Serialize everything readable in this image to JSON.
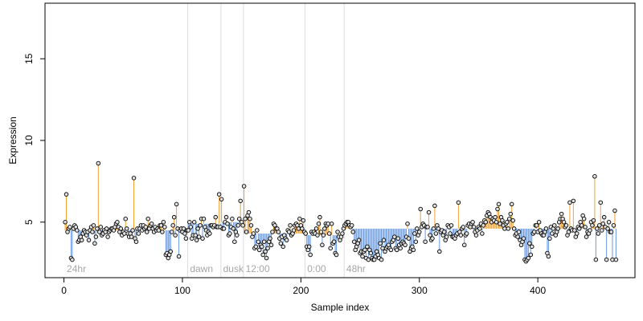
{
  "chart_data": {
    "type": "scatter",
    "title": "",
    "xlabel": "Sample index",
    "ylabel": "Expression",
    "xlim": [
      -16,
      482
    ],
    "ylim": [
      1.6,
      18.4
    ],
    "x_ticks": [
      0,
      100,
      200,
      300,
      400
    ],
    "y_ticks": [
      5,
      10,
      15
    ],
    "grid": false,
    "baseline_reference": "per-segment group mean",
    "colors": {
      "above_baseline": "#f0a030",
      "below_baseline": "#6a9ae0",
      "segment_divider": "#dddddd",
      "segment_label": "#a6a6a6",
      "point_fill": "#e0e0e0",
      "point_stroke": "#000000"
    },
    "segments": [
      {
        "label": "24hr",
        "start": 1,
        "end": 104,
        "baseline": 4.5
      },
      {
        "label": "dawn",
        "start": 105,
        "end": 132,
        "baseline": 4.9
      },
      {
        "label": "dusk",
        "start": 133,
        "end": 151,
        "baseline": 5.0
      },
      {
        "label": "12:00",
        "start": 152,
        "end": 203,
        "baseline": 4.3
      },
      {
        "label": "0:00",
        "start": 204,
        "end": 236,
        "baseline": 4.2
      },
      {
        "label": "48hr",
        "start": 237,
        "end": 466,
        "baseline": 4.6
      }
    ],
    "series": [
      {
        "values": [
          5.0,
          6.7,
          4.4,
          4.6,
          4.7,
          2.8,
          2.7,
          4.6,
          4.8,
          4.7,
          4.5,
          3.8,
          3.9,
          4.1,
          3.9,
          4.3,
          4.5,
          4.4,
          4.2,
          4.4,
          3.9,
          4.5,
          4.7,
          4.4,
          4.8,
          3.7,
          4.1,
          4.6,
          8.6,
          4.4,
          4.7,
          4.2,
          4.3,
          4.5,
          4.4,
          4.6,
          4.1,
          4.4,
          4.5,
          4.6,
          4.6,
          4.5,
          4.7,
          4.9,
          5.0,
          4.7,
          4.4,
          4.6,
          4.2,
          4.4,
          4.3,
          5.2,
          4.6,
          4.3,
          4.1,
          4.3,
          4.1,
          4.5,
          7.7,
          4.0,
          3.8,
          4.6,
          4.3,
          4.6,
          4.8,
          4.5,
          4.8,
          4.6,
          4.7,
          4.4,
          5.2,
          4.6,
          4.8,
          4.9,
          4.6,
          4.4,
          4.7,
          4.5,
          4.6,
          4.5,
          4.8,
          4.8,
          4.4,
          5.0,
          4.7,
          3.0,
          3.1,
          2.8,
          3.0,
          3.2,
          4.4,
          4.8,
          5.3,
          4.2,
          6.1,
          4.6,
          2.9,
          4.5,
          4.6,
          4.4,
          4.6,
          4.3,
          4.0,
          4.5,
          4.5,
          5.0,
          4.7,
          4.0,
          4.2,
          5.0,
          4.2,
          3.9,
          4.6,
          4.1,
          4.8,
          5.2,
          4.0,
          5.2,
          4.7,
          4.5,
          4.2,
          4.4,
          4.3,
          4.8,
          4.8,
          4.7,
          4.8,
          5.3,
          4.7,
          4.7,
          6.7,
          4.7,
          6.4,
          4.6,
          4.6,
          5.0,
          5.3,
          4.9,
          4.2,
          4.3,
          4.7,
          5.2,
          4.6,
          3.8,
          4.4,
          4.2,
          4.8,
          5.2,
          6.3,
          5.0,
          4.8,
          7.2,
          5.2,
          4.4,
          5.4,
          5.6,
          5.2,
          4.8,
          4.1,
          4.3,
          3.4,
          3.5,
          4.5,
          3.8,
          3.3,
          3.6,
          3.5,
          3.0,
          3.8,
          3.2,
          2.8,
          3.4,
          3.8,
          4.0,
          3.6,
          4.4,
          4.9,
          4.8,
          4.6,
          4.6,
          4.4,
          4.0,
          3.7,
          4.1,
          3.5,
          4.2,
          4.0,
          3.9,
          4.5,
          4.4,
          4.8,
          4.2,
          4.3,
          4.5,
          4.8,
          4.9,
          4.8,
          4.6,
          5.2,
          4.8,
          4.6,
          5.1,
          4.4,
          4.3,
          3.5,
          3.3,
          3.5,
          3.0,
          4.4,
          4.3,
          4.4,
          4.3,
          4.6,
          4.2,
          4.9,
          5.3,
          4.4,
          3.6,
          4.2,
          4.6,
          4.9,
          4.8,
          4.9,
          4.3,
          3.4,
          4.9,
          3.7,
          3.8,
          3.1,
          3.0,
          4.4,
          4.1,
          3.9,
          4.1,
          4.3,
          4.6,
          4.8,
          4.9,
          5.0,
          5.0,
          4.8,
          4.7,
          4.8,
          4.4,
          3.8,
          3.3,
          3.5,
          3.7,
          3.9,
          3.1,
          3.2,
          2.9,
          3.2,
          3.3,
          2.8,
          3.5,
          2.7,
          3.3,
          3.1,
          2.8,
          2.7,
          2.7,
          2.9,
          3.2,
          3.0,
          2.8,
          3.7,
          2.7,
          3.4,
          3.9,
          3.2,
          3.4,
          3.5,
          3.6,
          3.4,
          3.3,
          3.8,
          3.9,
          4.1,
          3.4,
          3.3,
          4.0,
          3.6,
          3.4,
          3.7,
          3.8,
          3.7,
          3.6,
          4.1,
          4.9,
          4.0,
          3.2,
          3.4,
          3.5,
          3.3,
          4.3,
          3.8,
          4.6,
          4.2,
          4.4,
          5.8,
          4.7,
          4.9,
          4.8,
          3.8,
          4.7,
          4.7,
          5.6,
          4.2,
          3.9,
          4.0,
          4.6,
          6.0,
          4.3,
          4.8,
          4.6,
          3.2,
          4.4,
          4.5,
          4.2,
          4.4,
          3.9,
          4.1,
          4.8,
          4.7,
          4.3,
          4.8,
          4.1,
          4.1,
          4.0,
          4.2,
          4.3,
          6.2,
          4.4,
          4.2,
          4.6,
          4.7,
          3.6,
          4.2,
          4.3,
          4.8,
          4.9,
          4.7,
          4.9,
          5.0,
          4.7,
          4.4,
          4.2,
          4.5,
          4.7,
          4.6,
          4.9,
          4.3,
          4.8,
          5.1,
          5.0,
          5.4,
          5.6,
          5.5,
          5.3,
          5.0,
          5.2,
          5.1,
          5.3,
          5.0,
          5.8,
          6.1,
          4.9,
          5.3,
          5.1,
          4.8,
          4.6,
          4.9,
          5.0,
          4.6,
          5.2,
          5.5,
          6.1,
          5.1,
          4.6,
          4.2,
          4.3,
          4.1,
          4.4,
          3.9,
          3.6,
          3.8,
          4.0,
          2.7,
          2.6,
          2.7,
          2.8,
          3.7,
          3.0,
          3.5,
          4.3,
          4.4,
          4.8,
          4.8,
          4.4,
          5.0,
          4.5,
          4.3,
          4.2,
          4.2,
          4.4,
          4.6,
          3.1,
          2.9,
          4.0,
          4.7,
          4.3,
          4.6,
          4.8,
          4.2,
          4.4,
          4.6,
          5.0,
          5.2,
          5.5,
          5.2,
          5.0,
          4.7,
          4.8,
          4.2,
          4.4,
          6.2,
          4.6,
          4.5,
          6.3,
          4.5,
          4.1,
          4.3,
          4.7,
          4.6,
          5.0,
          4.8,
          5.4,
          5.2,
          4.7,
          4.1,
          4.4,
          4.3,
          4.5,
          5.0,
          4.8,
          5.1,
          7.8,
          2.7,
          4.6,
          4.3,
          4.8,
          6.2,
          4.5,
          4.9,
          5.3,
          4.7,
          2.7,
          4.6,
          5.0,
          4.4,
          4.4,
          2.7,
          4.8,
          5.7,
          2.7
        ]
      }
    ]
  }
}
